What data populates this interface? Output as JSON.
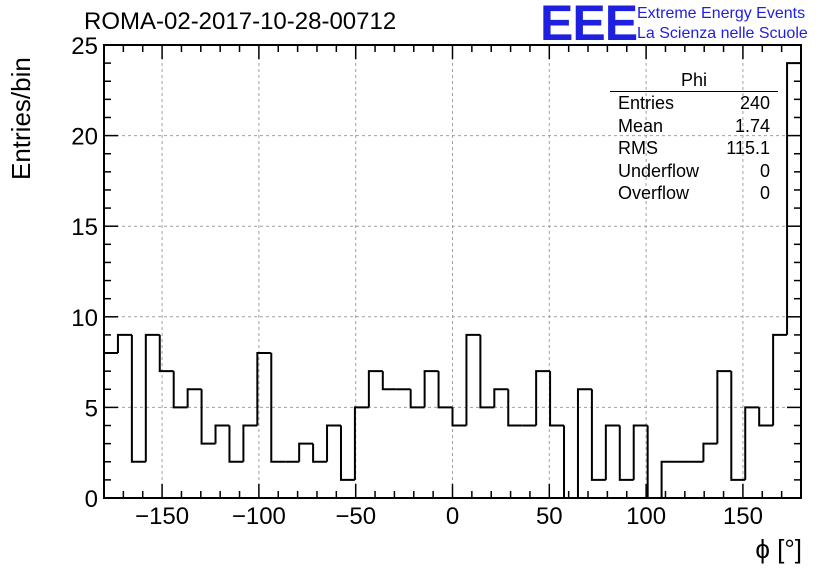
{
  "header": {
    "title": "ROMA-02-2017-10-28-00712",
    "logo_text": "EEE",
    "logo_line1": "Extreme Energy Events",
    "logo_line2": "La Scienza nelle Scuole"
  },
  "stats_box": {
    "title": "Phi",
    "rows": [
      {
        "label": "Entries",
        "value": "240"
      },
      {
        "label": "Mean",
        "value": "1.74"
      },
      {
        "label": "RMS",
        "value": "115.1"
      },
      {
        "label": "Underflow",
        "value": "0"
      },
      {
        "label": "Overflow",
        "value": "0"
      }
    ]
  },
  "chart_data": {
    "type": "bar",
    "histogram": true,
    "xlabel": "ϕ [°]",
    "ylabel": "Entries/bin",
    "xlim": [
      -180,
      180
    ],
    "ylim": [
      0,
      25
    ],
    "bin_width": 7.2,
    "bin_start": -180,
    "grid": true,
    "x_ticks": [
      -150,
      -100,
      -50,
      0,
      50,
      100,
      150
    ],
    "x_tick_labels": [
      "−150",
      "−100",
      "−50",
      "0",
      "50",
      "100",
      "150"
    ],
    "y_ticks": [
      0,
      5,
      10,
      15,
      20,
      25
    ],
    "y_tick_labels": [
      "0",
      "5",
      "10",
      "15",
      "20",
      "25"
    ],
    "values": [
      8,
      9,
      2,
      9,
      7,
      5,
      6,
      3,
      4,
      2,
      4,
      8,
      2,
      2,
      3,
      2,
      4,
      1,
      5,
      7,
      6,
      6,
      5,
      7,
      5,
      4,
      9,
      5,
      6,
      4,
      4,
      7,
      4,
      0,
      6,
      1,
      4,
      1,
      4,
      0,
      2,
      2,
      2,
      3,
      7,
      1,
      5,
      4,
      9,
      24
    ]
  }
}
